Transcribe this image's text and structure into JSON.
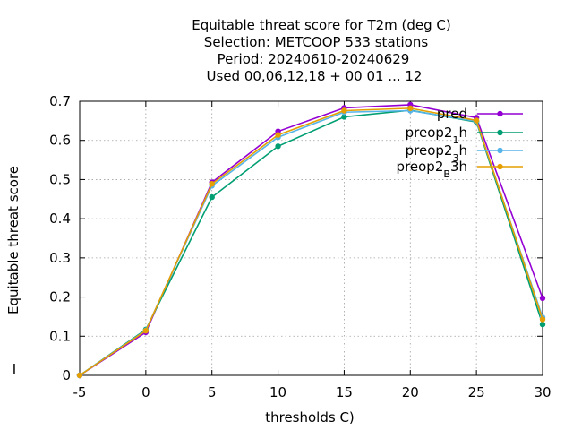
{
  "chart_data": {
    "type": "line",
    "title_lines": [
      "Equitable threat score  for T2m (deg C)",
      "Selection: METCOOP    533 stations",
      "Period: 20240610-20240629",
      "Used  00,06,12,18 + 00 01 ... 12"
    ],
    "xlabel": "thresholds C)",
    "ylabel": "Equitable threat score",
    "side_mark": "I",
    "x": [
      -5,
      0,
      5,
      10,
      15,
      20,
      25,
      30
    ],
    "xlim": [
      -5,
      30
    ],
    "ylim": [
      0,
      0.7
    ],
    "xticks": [
      -5,
      0,
      5,
      10,
      15,
      20,
      25,
      30
    ],
    "yticks": [
      0,
      0.1,
      0.2,
      0.3,
      0.4,
      0.5,
      0.6,
      0.7
    ],
    "grid": true,
    "legend_position": "top-right",
    "series": [
      {
        "name": "pred",
        "color": "#9400d3",
        "values": [
          0.0,
          0.11,
          0.493,
          0.623,
          0.683,
          0.691,
          0.658,
          0.197
        ]
      },
      {
        "name": "preop2_1h",
        "color": "#009e73",
        "values": [
          0.0,
          0.117,
          0.455,
          0.585,
          0.66,
          0.677,
          0.647,
          0.13
        ]
      },
      {
        "name": "preop2_3h",
        "color": "#56b4e9",
        "values": [
          0.0,
          0.115,
          0.484,
          0.608,
          0.672,
          0.676,
          0.649,
          0.148
        ]
      },
      {
        "name": "preop2_B3h",
        "color": "#e69f00",
        "values": [
          0.0,
          0.114,
          0.489,
          0.614,
          0.676,
          0.682,
          0.651,
          0.143
        ]
      }
    ],
    "legend_labels": [
      {
        "base": "pred",
        "sub": "",
        "tail": ""
      },
      {
        "base": "preop2",
        "sub": "1",
        "tail": "h"
      },
      {
        "base": "preop2",
        "sub": "3",
        "tail": "h"
      },
      {
        "base": "preop2",
        "sub": "B",
        "tail": "3h"
      }
    ]
  }
}
